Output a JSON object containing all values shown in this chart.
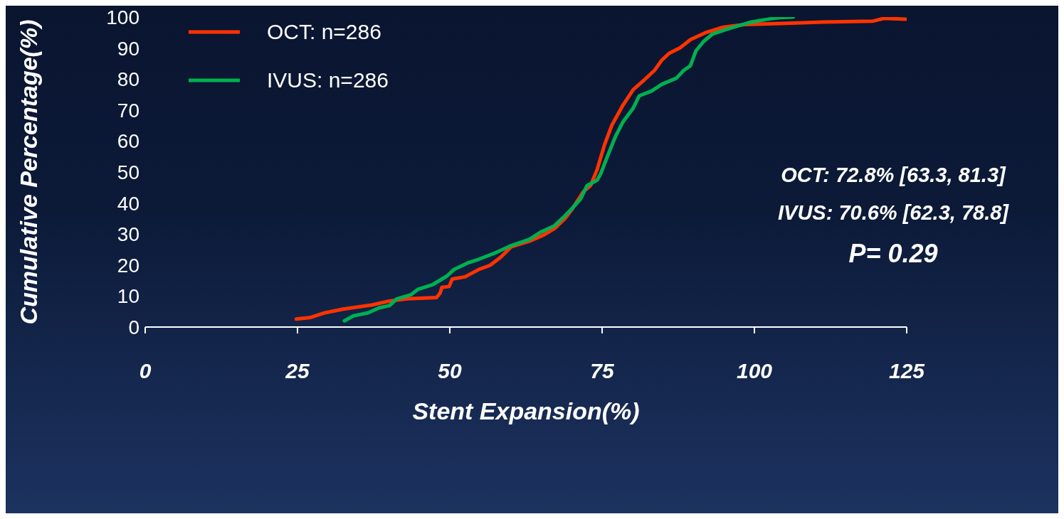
{
  "chart_data": {
    "type": "line",
    "xlabel": "Stent Expansion(%)",
    "ylabel": "Cumulative Percentage(%)",
    "xlim": [
      0,
      125
    ],
    "xticks": [
      0,
      25,
      50,
      75,
      100,
      125
    ],
    "ylim": [
      0,
      100
    ],
    "yticks": [
      0,
      10,
      20,
      30,
      40,
      50,
      60,
      70,
      80,
      90,
      100
    ],
    "grid": false,
    "legend": "top left",
    "marker": "none",
    "line_style": "solid",
    "annotations": [
      "OCT: 72.8% [63.3, 81.3]",
      "IVUS: 70.6% [62.3, 78.8]",
      "P= 0.29"
    ],
    "series": [
      {
        "name": "OCT: n=286",
        "color": "#ff3300",
        "x": [
          24.8,
          27.2,
          29.5,
          32.5,
          37.2,
          40.1,
          43.1,
          47.8,
          48.4,
          48.7,
          49.9,
          50.4,
          52.5,
          54.8,
          56.6,
          58.4,
          60.1,
          63.1,
          65.4,
          67.2,
          68.9,
          70.1,
          71.9,
          73.1,
          74.2,
          75.4,
          76.6,
          78.4,
          80.1,
          81.9,
          83.6,
          84.8,
          86.0,
          87.8,
          89.5,
          91.9,
          94.8,
          98.4,
          105.4,
          111.3,
          119.5,
          121.3,
          125
        ],
        "values": [
          2.6,
          3.1,
          4.6,
          5.8,
          7.1,
          8.4,
          9.1,
          9.5,
          10.9,
          12.8,
          13.1,
          15.5,
          16.2,
          18.6,
          19.9,
          22.6,
          25.9,
          27.7,
          29.7,
          31.8,
          35.0,
          38.1,
          43.6,
          45.6,
          50.9,
          58.8,
          65.1,
          71.5,
          76.6,
          79.7,
          82.8,
          86.1,
          88.3,
          90.1,
          92.7,
          94.9,
          96.7,
          97.6,
          98.0,
          98.4,
          98.7,
          99.6,
          99.3
        ]
      },
      {
        "name": "IVUS: n=286",
        "color": "#00b050",
        "x": [
          32.7,
          34.2,
          36.6,
          38.4,
          40.1,
          41.3,
          43.6,
          44.8,
          47.2,
          49.5,
          50.7,
          53.1,
          54.8,
          57.2,
          60.1,
          63.1,
          64.8,
          67.2,
          68.9,
          70.1,
          71.5,
          72.5,
          74.2,
          74.8,
          75.8,
          77.2,
          78.4,
          80.1,
          81.1,
          83.1,
          84.8,
          87.2,
          88.4,
          89.5,
          90.4,
          91.7,
          93.1,
          95.4,
          97.2,
          99.5,
          102.5,
          104.2,
          106.4
        ],
        "values": [
          2.0,
          3.6,
          4.6,
          6.2,
          6.9,
          9.1,
          10.4,
          12.2,
          13.7,
          16.4,
          18.6,
          20.8,
          21.9,
          23.7,
          26.3,
          28.3,
          30.5,
          32.7,
          35.9,
          38.3,
          41.4,
          45.6,
          47.4,
          49.6,
          54.7,
          61.5,
          66.1,
          70.6,
          74.6,
          76.1,
          78.3,
          80.3,
          82.8,
          84.3,
          89.1,
          92.2,
          94.5,
          96.0,
          97.1,
          98.4,
          99.4,
          99.8,
          100
        ]
      }
    ]
  }
}
